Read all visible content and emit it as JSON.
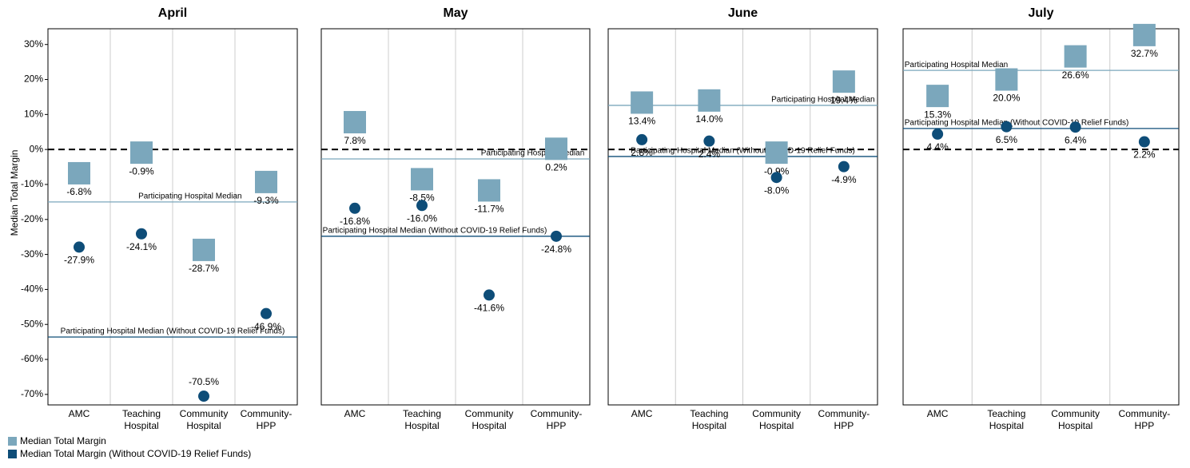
{
  "chart_data": [
    {
      "type": "scatter",
      "title": "April",
      "ylabel": "Median Total Margin",
      "categories": [
        "AMC",
        "Teaching Hospital",
        "Community Hospital",
        "Community- HPP"
      ],
      "ylim": [
        -73,
        34.5
      ],
      "yticks": [
        {
          "value": 30,
          "label": "30%"
        },
        {
          "value": 20,
          "label": "20%"
        },
        {
          "value": 10,
          "label": "10%"
        },
        {
          "value": 0,
          "label": "0%"
        },
        {
          "value": -10,
          "label": "-10%"
        },
        {
          "value": -20,
          "label": "-20%"
        },
        {
          "value": -30,
          "label": "-30%"
        },
        {
          "value": -40,
          "label": "-40%"
        },
        {
          "value": -50,
          "label": "-50%"
        },
        {
          "value": -60,
          "label": "-60%"
        },
        {
          "value": -70,
          "label": "-70%"
        }
      ],
      "series": [
        {
          "values": [
            -6.8,
            -0.9,
            -28.7,
            -9.3
          ],
          "value_labels": [
            "-6.8%",
            "-0.9%",
            "-28.7%",
            "-9.3%"
          ]
        },
        {
          "values": [
            -27.9,
            -24.1,
            -70.5,
            -46.9
          ],
          "value_labels": [
            "-27.9%",
            "-24.1%",
            "-70.5%",
            "-46.9%"
          ]
        }
      ],
      "reference_lines": [
        {
          "label": "Participating Hospital Median",
          "value": -15.0
        },
        {
          "label": "Participating Hospital Median (Without COVID-19 Relief Funds)",
          "value": -53.6
        }
      ]
    },
    {
      "type": "scatter",
      "title": "May",
      "categories": [
        "AMC",
        "Teaching Hospital",
        "Community Hospital",
        "Community- HPP"
      ],
      "ylim": [
        -73,
        34.5
      ],
      "series": [
        {
          "values": [
            7.8,
            -8.5,
            -11.7,
            0.2
          ],
          "value_labels": [
            "7.8%",
            "-8.5%",
            "-11.7%",
            "0.2%"
          ]
        },
        {
          "values": [
            -16.8,
            -16.0,
            -41.6,
            -24.8
          ],
          "value_labels": [
            "-16.8%",
            "-16.0%",
            "-41.6%",
            "-24.8%"
          ]
        }
      ],
      "reference_lines": [
        {
          "label": "Participating Hospital Median",
          "value": -2.7
        },
        {
          "label": "Participating Hospital Median (Without COVID-19 Relief Funds)",
          "value": -24.8
        }
      ]
    },
    {
      "type": "scatter",
      "title": "June",
      "categories": [
        "AMC",
        "Teaching Hospital",
        "Community Hospital",
        "Community- HPP"
      ],
      "ylim": [
        -73,
        34.5
      ],
      "series": [
        {
          "values": [
            13.4,
            14.0,
            -0.9,
            19.4
          ],
          "value_labels": [
            "13.4%",
            "14.0%",
            "-0.9%",
            "19.4%"
          ]
        },
        {
          "values": [
            2.8,
            2.4,
            -8.0,
            -4.9
          ],
          "value_labels": [
            "2.8%",
            "2.4%",
            "-8.0%",
            "-4.9%"
          ]
        }
      ],
      "reference_lines": [
        {
          "label": "Participating Hospital Median",
          "value": 12.6
        },
        {
          "label": "Participating Hospital Median (Without COVID-19 Relief Funds)",
          "value": -2.0
        }
      ]
    },
    {
      "type": "scatter",
      "title": "July",
      "categories": [
        "AMC",
        "Teaching Hospital",
        "Community Hospital",
        "Community- HPP"
      ],
      "ylim": [
        -73,
        34.5
      ],
      "series": [
        {
          "values": [
            15.3,
            20.0,
            26.6,
            32.7
          ],
          "value_labels": [
            "15.3%",
            "20.0%",
            "26.6%",
            "32.7%"
          ]
        },
        {
          "values": [
            4.4,
            6.5,
            6.4,
            2.2
          ],
          "value_labels": [
            "4.4%",
            "6.5%",
            "6.4%",
            "2.2%"
          ]
        }
      ],
      "reference_lines": [
        {
          "label": "Participating Hospital Median",
          "value": 22.6
        },
        {
          "label": "Participating Hospital Median (Without COVID-19 Relief Funds)",
          "value": 6.0
        }
      ]
    }
  ],
  "legend": [
    {
      "name": "Median Total Margin",
      "color": "#7ba7bc"
    },
    {
      "name": "Median Total Margin (Without COVID-19 Relief Funds)",
      "color": "#0e4d78"
    }
  ]
}
